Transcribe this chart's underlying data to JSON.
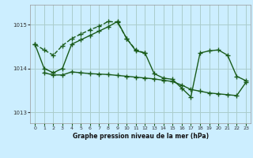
{
  "xlabel": "Graphe pression niveau de la mer (hPa)",
  "bg_color": "#cceeff",
  "grid_color": "#aacccc",
  "line_color": "#1a5c1a",
  "ylim": [
    1012.75,
    1015.45
  ],
  "yticks": [
    1013,
    1014,
    1015
  ],
  "xlim": [
    -0.5,
    23.5
  ],
  "xticks": [
    0,
    1,
    2,
    3,
    4,
    5,
    6,
    7,
    8,
    9,
    10,
    11,
    12,
    13,
    14,
    15,
    16,
    17,
    18,
    19,
    20,
    21,
    22,
    23
  ],
  "line1_x": [
    0,
    1,
    2,
    3,
    4,
    5,
    6,
    7,
    8,
    9,
    10,
    11,
    12
  ],
  "line1_y": [
    1014.55,
    1014.42,
    1014.3,
    1014.52,
    1014.68,
    1014.78,
    1014.88,
    1014.96,
    1015.07,
    1015.05,
    1014.68,
    1014.42,
    1014.35
  ],
  "line2_x": [
    0,
    1,
    2,
    3,
    4,
    5,
    6,
    7,
    8,
    9,
    10,
    11,
    12,
    13,
    14,
    15,
    16,
    17,
    18,
    19,
    20,
    21,
    22,
    23
  ],
  "line2_y": [
    1014.55,
    1014.0,
    1013.9,
    1014.0,
    1014.55,
    1014.65,
    1014.75,
    1014.85,
    1014.95,
    1015.07,
    1014.68,
    1014.4,
    1014.35,
    1013.88,
    1013.78,
    1013.75,
    1013.55,
    1013.35,
    1014.35,
    1014.4,
    1014.42,
    1014.3,
    1013.82,
    1013.72
  ],
  "line3_x": [
    1,
    2,
    3,
    4,
    5,
    6,
    7,
    8,
    9,
    10,
    11,
    12,
    13,
    14,
    15,
    16,
    17,
    18,
    19,
    20,
    21,
    22,
    23
  ],
  "line3_y": [
    1013.9,
    1013.85,
    1013.85,
    1013.92,
    1013.9,
    1013.88,
    1013.87,
    1013.86,
    1013.84,
    1013.82,
    1013.8,
    1013.78,
    1013.76,
    1013.73,
    1013.7,
    1013.62,
    1013.52,
    1013.48,
    1013.44,
    1013.42,
    1013.4,
    1013.38,
    1013.68
  ]
}
